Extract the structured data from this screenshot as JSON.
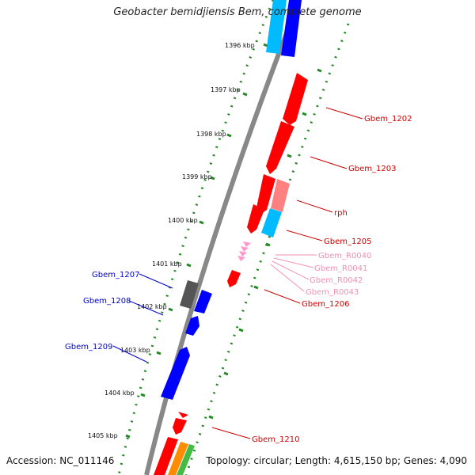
{
  "title": "Geobacter bemidjiensis Bem, complete genome",
  "footer": {
    "accession": "Accession: NC_011146",
    "topology": "Topology: circular; Length: 4,615,150 bp; Genes: 4,090"
  },
  "ticks": [
    "1396 kbp",
    "1397 kbp",
    "1398 kbp",
    "1399 kbp",
    "1400 kbp",
    "1401 kbp",
    "1402 kbp",
    "1403 kbp",
    "1404 kbp",
    "1405 kbp"
  ],
  "labels_right": [
    {
      "text": "Gbem_1202",
      "color": "#cc0000"
    },
    {
      "text": "Gbem_1203",
      "color": "#cc0000"
    },
    {
      "text": "rph",
      "color": "#cc0000"
    },
    {
      "text": "Gbem_1205",
      "color": "#cc0000"
    },
    {
      "text": "Gbem_R0040",
      "color": "#f090b0"
    },
    {
      "text": "Gbem_R0041",
      "color": "#f090b0"
    },
    {
      "text": "Gbem_R0042",
      "color": "#f090b0"
    },
    {
      "text": "Gbem_R0043",
      "color": "#f090b0"
    },
    {
      "text": "Gbem_1206",
      "color": "#cc0000"
    },
    {
      "text": "Gbem_1210",
      "color": "#cc0000"
    }
  ],
  "labels_left": [
    {
      "text": "Gbem_1207",
      "color": "#0000cc"
    },
    {
      "text": "Gbem_1208",
      "color": "#0000cc"
    },
    {
      "text": "Gbem_1209",
      "color": "#0000cc"
    }
  ],
  "colors": {
    "red": "#ff0000",
    "blue": "#0000ff",
    "cyan": "#00bbff",
    "gray": "#555555",
    "pink": "#ff8080",
    "rrna": "#ff99cc",
    "backbone": "#888888",
    "ticks": "#228822"
  }
}
